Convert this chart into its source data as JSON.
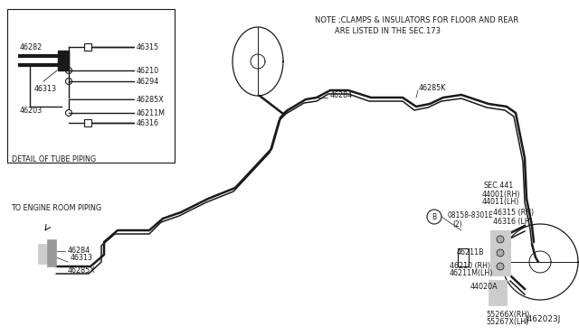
{
  "title": "J462023J",
  "bg_color": "#ffffff",
  "line_color": "#1a1a1a",
  "note_line1": "NOTE ;CLAMPS & INSULATORS FOR FLOOR AND REAR",
  "note_line2": "ARE LISTED IN THE SEC.173",
  "detail_box_label": "DETAIL OF TUBE PIPING",
  "font_size": 6.0,
  "diagram_font": "DejaVu Sans",
  "pipe_lw": 1.8,
  "pipe_lw2": 1.1
}
